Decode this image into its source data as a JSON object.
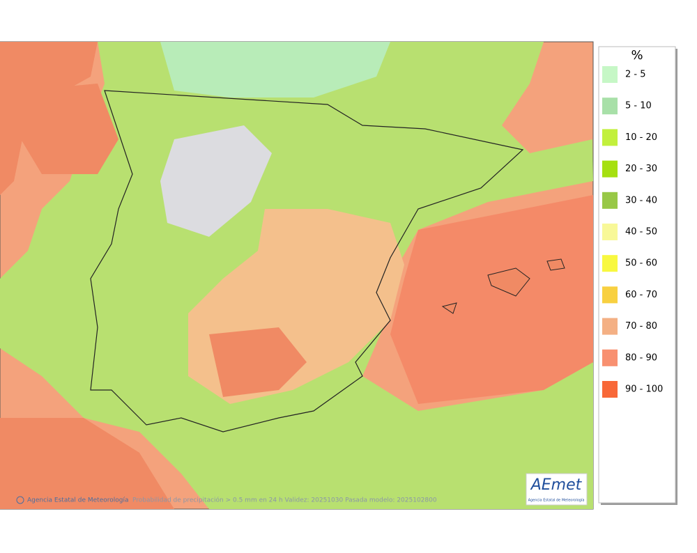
{
  "map": {
    "caption": "Probabilidad de precipitación > 0.5 mm en 24 h Validez: 20251030 Pasada modelo: 2025102800",
    "credit": "Agencia Estatal de Meteorología"
  },
  "logo": {
    "text": "AEmet",
    "subtitle": "Agencia Estatal de Meteorología"
  },
  "legend": {
    "title": "%",
    "items": [
      {
        "label": "2 - 5",
        "color": "#c6f7c6"
      },
      {
        "label": "5 - 10",
        "color": "#a8e0a8"
      },
      {
        "label": "10 - 20",
        "color": "#c2f03c"
      },
      {
        "label": "20 - 30",
        "color": "#a6e010"
      },
      {
        "label": "30 - 40",
        "color": "#98c846"
      },
      {
        "label": "40 - 50",
        "color": "#f8f898"
      },
      {
        "label": "50 - 60",
        "color": "#f8f840"
      },
      {
        "label": "60 - 70",
        "color": "#f8d040"
      },
      {
        "label": "70 - 80",
        "color": "#f4b084"
      },
      {
        "label": "80 - 90",
        "color": "#f89070"
      },
      {
        "label": "90 - 100",
        "color": "#f86838"
      }
    ]
  }
}
